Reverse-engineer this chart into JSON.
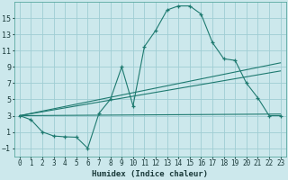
{
  "xlabel": "Humidex (Indice chaleur)",
  "bg_color": "#cce8ec",
  "grid_color": "#9fcdd4",
  "line_color": "#1e7a70",
  "xlim": [
    -0.5,
    23.5
  ],
  "ylim": [
    -2.0,
    17.0
  ],
  "xticks": [
    0,
    1,
    2,
    3,
    4,
    5,
    6,
    7,
    8,
    9,
    10,
    11,
    12,
    13,
    14,
    15,
    16,
    17,
    18,
    19,
    20,
    21,
    22,
    23
  ],
  "yticks": [
    -1,
    1,
    3,
    5,
    7,
    9,
    11,
    13,
    15
  ],
  "curve_x": [
    0,
    1,
    2,
    3,
    4,
    5,
    6,
    7,
    8,
    9,
    10,
    11,
    12,
    13,
    14,
    15,
    16,
    17,
    18,
    19,
    20,
    21,
    22,
    23
  ],
  "curve_y": [
    3.0,
    2.5,
    1.0,
    0.5,
    0.4,
    0.35,
    -1.0,
    3.3,
    5.0,
    9.0,
    4.2,
    11.5,
    13.5,
    16.0,
    16.5,
    16.5,
    15.5,
    12.0,
    10.0,
    9.8,
    7.0,
    5.2,
    3.0,
    3.0
  ],
  "line1_x": [
    0,
    23
  ],
  "line1_y": [
    3.0,
    9.5
  ],
  "line2_x": [
    0,
    23
  ],
  "line2_y": [
    3.0,
    8.5
  ],
  "line3_x": [
    0,
    23
  ],
  "line3_y": [
    3.0,
    3.2
  ]
}
